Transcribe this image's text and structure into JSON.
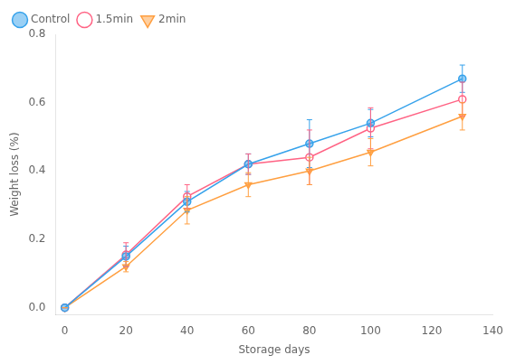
{
  "chart_data": {
    "type": "line",
    "x": [
      0,
      20,
      40,
      60,
      80,
      100,
      130
    ],
    "series": [
      {
        "name": "Control",
        "values": [
          0.0,
          0.15,
          0.31,
          0.42,
          0.48,
          0.54,
          0.67
        ],
        "yerr": [
          0.0,
          0.03,
          0.03,
          0.03,
          0.07,
          0.04,
          0.04
        ],
        "marker": "circle"
      },
      {
        "name": "1.5min",
        "values": [
          0.0,
          0.155,
          0.325,
          0.42,
          0.44,
          0.525,
          0.61
        ],
        "yerr": [
          0.0,
          0.035,
          0.035,
          0.03,
          0.08,
          0.06,
          0.05
        ],
        "marker": "open_circle"
      },
      {
        "name": "2min",
        "values": [
          0.0,
          0.12,
          0.285,
          0.36,
          0.4,
          0.455,
          0.56
        ],
        "yerr": [
          0.0,
          0.015,
          0.04,
          0.035,
          0.04,
          0.04,
          0.04
        ],
        "marker": "triangle_down"
      }
    ],
    "xlabel": "Storage days",
    "ylabel": "Weight loss (%)",
    "xlim": [
      -3,
      140
    ],
    "ylim": [
      -0.02,
      0.8
    ],
    "xticks": [
      0,
      20,
      40,
      60,
      80,
      100,
      120,
      140
    ],
    "yticks": [
      {
        "value": 0.0,
        "label": "0.0"
      },
      0.2,
      0.4,
      0.6,
      0.8
    ],
    "grid": false,
    "legend": "upper left"
  }
}
